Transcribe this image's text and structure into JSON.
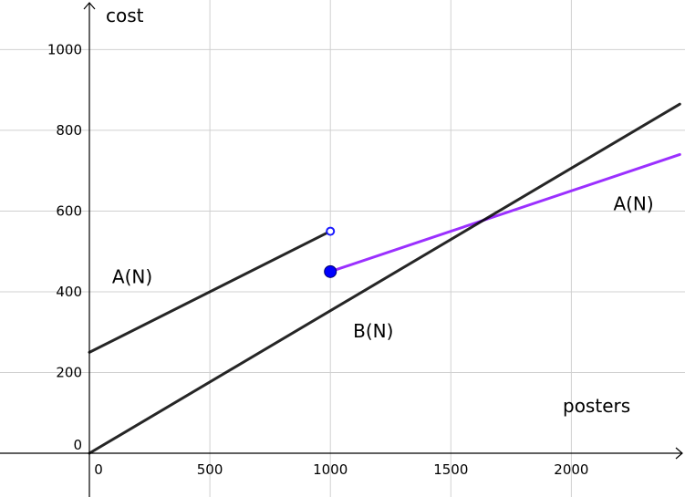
{
  "chart_data": {
    "type": "line",
    "xlabel": "posters",
    "ylabel": "cost",
    "xlim": [
      -20,
      2450
    ],
    "ylim": [
      -110,
      1115
    ],
    "grid": true,
    "x_ticks": [
      0,
      500,
      1000,
      1500,
      2000
    ],
    "x_tick_labels": [
      "0",
      "500",
      "1000",
      "1500",
      "2000"
    ],
    "y_ticks": [
      0,
      200,
      400,
      600,
      800,
      1000
    ],
    "y_tick_labels": [
      "0",
      "200",
      "400",
      "600",
      "800",
      "1000"
    ],
    "series": [
      {
        "name": "A(N)",
        "color": "#000000",
        "x": [
          0,
          1000
        ],
        "y": [
          250,
          550
        ],
        "open_end": [
          1000,
          550
        ]
      },
      {
        "name": "A(N)",
        "color": "#9b30ff",
        "x": [
          1000,
          2450
        ],
        "y": [
          450,
          740
        ],
        "closed_start": [
          1000,
          450
        ]
      },
      {
        "name": "B(N)",
        "color": "#000000",
        "x": [
          0,
          2450
        ],
        "y": [
          0,
          865
        ]
      }
    ],
    "annotations": [
      {
        "text": "A(N)",
        "x": 170,
        "y": 440
      },
      {
        "text": "A(N)",
        "x": 2250,
        "y": 620
      },
      {
        "text": "B(N)",
        "x": 1170,
        "y": 305
      }
    ]
  }
}
